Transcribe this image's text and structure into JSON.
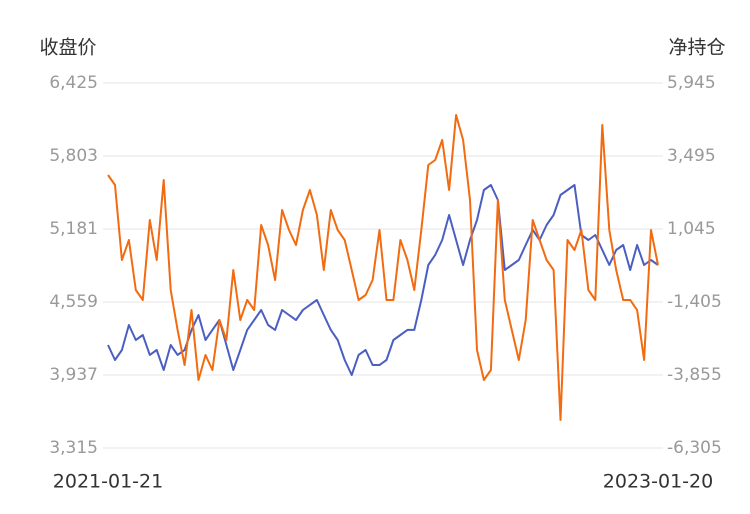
{
  "chart_data": {
    "type": "line",
    "y_label": "收盘价",
    "y2_label": "净持仓",
    "categories": [
      "2021-01-21",
      null,
      null,
      null,
      null,
      null,
      null,
      null,
      null,
      null,
      null,
      null,
      null,
      null,
      null,
      null,
      null,
      null,
      null,
      null,
      null,
      null,
      null,
      null,
      null,
      null,
      null,
      null,
      null,
      null,
      null,
      null,
      null,
      null,
      null,
      null,
      null,
      null,
      null,
      null,
      null,
      null,
      null,
      null,
      null,
      null,
      null,
      null,
      null,
      null,
      null,
      null,
      null,
      null,
      null,
      null,
      null,
      null,
      null,
      null,
      null,
      null,
      null,
      null,
      null,
      null,
      null,
      null,
      null,
      null,
      null,
      null,
      null,
      null,
      null,
      null,
      null,
      null,
      null,
      "2023-01-20"
    ],
    "series": [
      {
        "name": "收盘价",
        "color": "#4a5fc1",
        "axis": "y",
        "values": [
          4193,
          4065,
          4150,
          4363,
          4235,
          4278,
          4108,
          4150,
          3980,
          4193,
          4108,
          4150,
          4321,
          4448,
          4235,
          4321,
          4406,
          4193,
          3980,
          4150,
          4321,
          4406,
          4491,
          4363,
          4321,
          4491,
          4448,
          4406,
          4491,
          4534,
          4576,
          4448,
          4321,
          4235,
          4065,
          3937,
          4108,
          4150,
          4022,
          4022,
          4065,
          4235,
          4278,
          4321,
          4321,
          4576,
          4874,
          4960,
          5087,
          5300,
          5087,
          4874,
          5087,
          5258,
          5513,
          5556,
          5428,
          4832,
          4874,
          4917,
          5045,
          5173,
          5087,
          5215,
          5300,
          5471,
          5513,
          5556,
          5130,
          5087,
          5130,
          5002,
          4874,
          5002,
          5045,
          4832,
          5045,
          4874,
          4917,
          4874
        ]
      },
      {
        "name": "净持仓",
        "color": "#f26b10",
        "axis": "y2",
        "values": [
          2857,
          2522,
          5,
          676,
          -1002,
          -1338,
          1347,
          5,
          2690,
          -1002,
          -2344,
          -3519,
          -1673,
          -4022,
          -3183,
          -3687,
          -2009,
          -2680,
          -331,
          -2009,
          -1338,
          -1673,
          1179,
          508,
          -666,
          1683,
          1012,
          508,
          1683,
          2354,
          1515,
          -331,
          1683,
          1012,
          676,
          -331,
          -1338,
          -1170,
          -666,
          1012,
          -1338,
          -1338,
          676,
          5,
          -1002,
          1012,
          3193,
          3361,
          4032,
          2354,
          4871,
          4032,
          2018,
          -3016,
          -4022,
          -3687,
          2018,
          -1338,
          -2344,
          -3351,
          -2009,
          1347,
          676,
          5,
          -331,
          -5365,
          676,
          340,
          1012,
          -1002,
          -1338,
          4535,
          1012,
          -331,
          -1338,
          -1338,
          -1673,
          -3351,
          1012,
          -163
        ]
      }
    ],
    "ylim": [
      3315,
      6425
    ],
    "yticks": [
      {
        "value": 3315,
        "label": "3,315"
      },
      {
        "value": 3937,
        "label": "3,937"
      },
      {
        "value": 4559,
        "label": "4,559"
      },
      {
        "value": 5181,
        "label": "5,181"
      },
      {
        "value": 5803,
        "label": "5,803"
      },
      {
        "value": 6425,
        "label": "6,425"
      }
    ],
    "y2lim": [
      -6305,
      5945
    ],
    "y2ticks": [
      {
        "value": -6305,
        "label": "-6,305"
      },
      {
        "value": -3855,
        "label": "-3,855"
      },
      {
        "value": -1405,
        "label": "-1,405"
      },
      {
        "value": 1045,
        "label": "1,045"
      },
      {
        "value": 3495,
        "label": "3,495"
      },
      {
        "value": 5945,
        "label": "5,945"
      }
    ],
    "grid": true
  }
}
